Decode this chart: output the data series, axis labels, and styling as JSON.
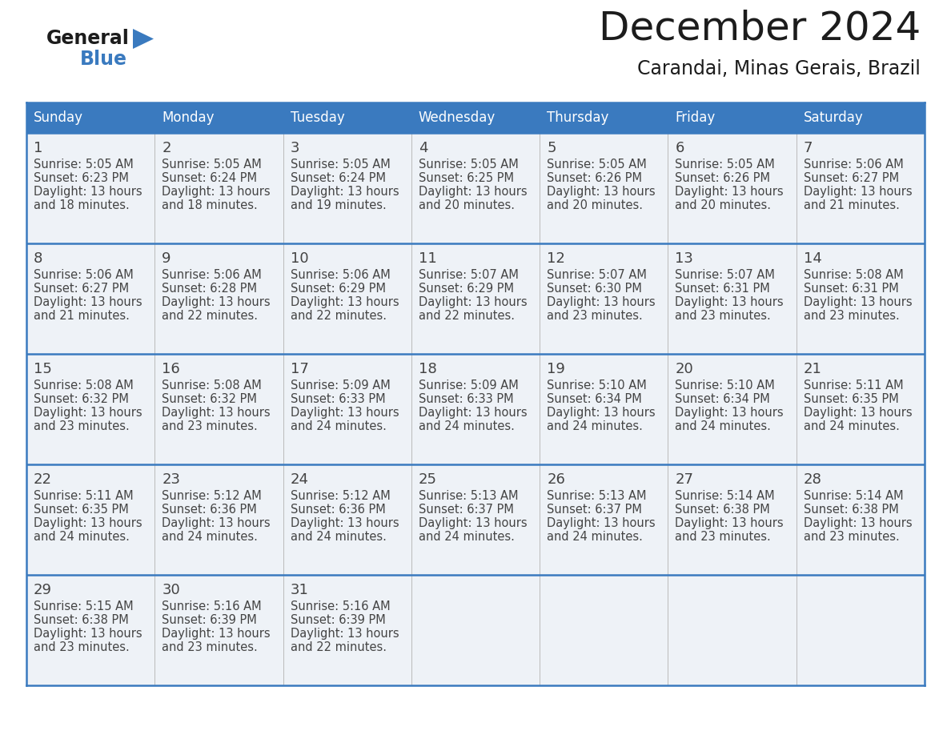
{
  "title": "December 2024",
  "subtitle": "Carandai, Minas Gerais, Brazil",
  "header_color": "#3a7abf",
  "header_text_color": "#ffffff",
  "cell_bg_color": "#eef2f7",
  "border_color": "#3a7abf",
  "sep_color": "#3a7abf",
  "text_color": "#444444",
  "days_of_week": [
    "Sunday",
    "Monday",
    "Tuesday",
    "Wednesday",
    "Thursday",
    "Friday",
    "Saturday"
  ],
  "calendar_data": [
    [
      {
        "day": "1",
        "sunrise": "5:05 AM",
        "sunset": "6:23 PM",
        "daylight_h": "13 hours",
        "daylight_m": "18 minutes."
      },
      {
        "day": "2",
        "sunrise": "5:05 AM",
        "sunset": "6:24 PM",
        "daylight_h": "13 hours",
        "daylight_m": "18 minutes."
      },
      {
        "day": "3",
        "sunrise": "5:05 AM",
        "sunset": "6:24 PM",
        "daylight_h": "13 hours",
        "daylight_m": "19 minutes."
      },
      {
        "day": "4",
        "sunrise": "5:05 AM",
        "sunset": "6:25 PM",
        "daylight_h": "13 hours",
        "daylight_m": "20 minutes."
      },
      {
        "day": "5",
        "sunrise": "5:05 AM",
        "sunset": "6:26 PM",
        "daylight_h": "13 hours",
        "daylight_m": "20 minutes."
      },
      {
        "day": "6",
        "sunrise": "5:05 AM",
        "sunset": "6:26 PM",
        "daylight_h": "13 hours",
        "daylight_m": "20 minutes."
      },
      {
        "day": "7",
        "sunrise": "5:06 AM",
        "sunset": "6:27 PM",
        "daylight_h": "13 hours",
        "daylight_m": "21 minutes."
      }
    ],
    [
      {
        "day": "8",
        "sunrise": "5:06 AM",
        "sunset": "6:27 PM",
        "daylight_h": "13 hours",
        "daylight_m": "21 minutes."
      },
      {
        "day": "9",
        "sunrise": "5:06 AM",
        "sunset": "6:28 PM",
        "daylight_h": "13 hours",
        "daylight_m": "22 minutes."
      },
      {
        "day": "10",
        "sunrise": "5:06 AM",
        "sunset": "6:29 PM",
        "daylight_h": "13 hours",
        "daylight_m": "22 minutes."
      },
      {
        "day": "11",
        "sunrise": "5:07 AM",
        "sunset": "6:29 PM",
        "daylight_h": "13 hours",
        "daylight_m": "22 minutes."
      },
      {
        "day": "12",
        "sunrise": "5:07 AM",
        "sunset": "6:30 PM",
        "daylight_h": "13 hours",
        "daylight_m": "23 minutes."
      },
      {
        "day": "13",
        "sunrise": "5:07 AM",
        "sunset": "6:31 PM",
        "daylight_h": "13 hours",
        "daylight_m": "23 minutes."
      },
      {
        "day": "14",
        "sunrise": "5:08 AM",
        "sunset": "6:31 PM",
        "daylight_h": "13 hours",
        "daylight_m": "23 minutes."
      }
    ],
    [
      {
        "day": "15",
        "sunrise": "5:08 AM",
        "sunset": "6:32 PM",
        "daylight_h": "13 hours",
        "daylight_m": "23 minutes."
      },
      {
        "day": "16",
        "sunrise": "5:08 AM",
        "sunset": "6:32 PM",
        "daylight_h": "13 hours",
        "daylight_m": "23 minutes."
      },
      {
        "day": "17",
        "sunrise": "5:09 AM",
        "sunset": "6:33 PM",
        "daylight_h": "13 hours",
        "daylight_m": "24 minutes."
      },
      {
        "day": "18",
        "sunrise": "5:09 AM",
        "sunset": "6:33 PM",
        "daylight_h": "13 hours",
        "daylight_m": "24 minutes."
      },
      {
        "day": "19",
        "sunrise": "5:10 AM",
        "sunset": "6:34 PM",
        "daylight_h": "13 hours",
        "daylight_m": "24 minutes."
      },
      {
        "day": "20",
        "sunrise": "5:10 AM",
        "sunset": "6:34 PM",
        "daylight_h": "13 hours",
        "daylight_m": "24 minutes."
      },
      {
        "day": "21",
        "sunrise": "5:11 AM",
        "sunset": "6:35 PM",
        "daylight_h": "13 hours",
        "daylight_m": "24 minutes."
      }
    ],
    [
      {
        "day": "22",
        "sunrise": "5:11 AM",
        "sunset": "6:35 PM",
        "daylight_h": "13 hours",
        "daylight_m": "24 minutes."
      },
      {
        "day": "23",
        "sunrise": "5:12 AM",
        "sunset": "6:36 PM",
        "daylight_h": "13 hours",
        "daylight_m": "24 minutes."
      },
      {
        "day": "24",
        "sunrise": "5:12 AM",
        "sunset": "6:36 PM",
        "daylight_h": "13 hours",
        "daylight_m": "24 minutes."
      },
      {
        "day": "25",
        "sunrise": "5:13 AM",
        "sunset": "6:37 PM",
        "daylight_h": "13 hours",
        "daylight_m": "24 minutes."
      },
      {
        "day": "26",
        "sunrise": "5:13 AM",
        "sunset": "6:37 PM",
        "daylight_h": "13 hours",
        "daylight_m": "24 minutes."
      },
      {
        "day": "27",
        "sunrise": "5:14 AM",
        "sunset": "6:38 PM",
        "daylight_h": "13 hours",
        "daylight_m": "23 minutes."
      },
      {
        "day": "28",
        "sunrise": "5:14 AM",
        "sunset": "6:38 PM",
        "daylight_h": "13 hours",
        "daylight_m": "23 minutes."
      }
    ],
    [
      {
        "day": "29",
        "sunrise": "5:15 AM",
        "sunset": "6:38 PM",
        "daylight_h": "13 hours",
        "daylight_m": "23 minutes."
      },
      {
        "day": "30",
        "sunrise": "5:16 AM",
        "sunset": "6:39 PM",
        "daylight_h": "13 hours",
        "daylight_m": "23 minutes."
      },
      {
        "day": "31",
        "sunrise": "5:16 AM",
        "sunset": "6:39 PM",
        "daylight_h": "13 hours",
        "daylight_m": "22 minutes."
      },
      null,
      null,
      null,
      null
    ]
  ]
}
